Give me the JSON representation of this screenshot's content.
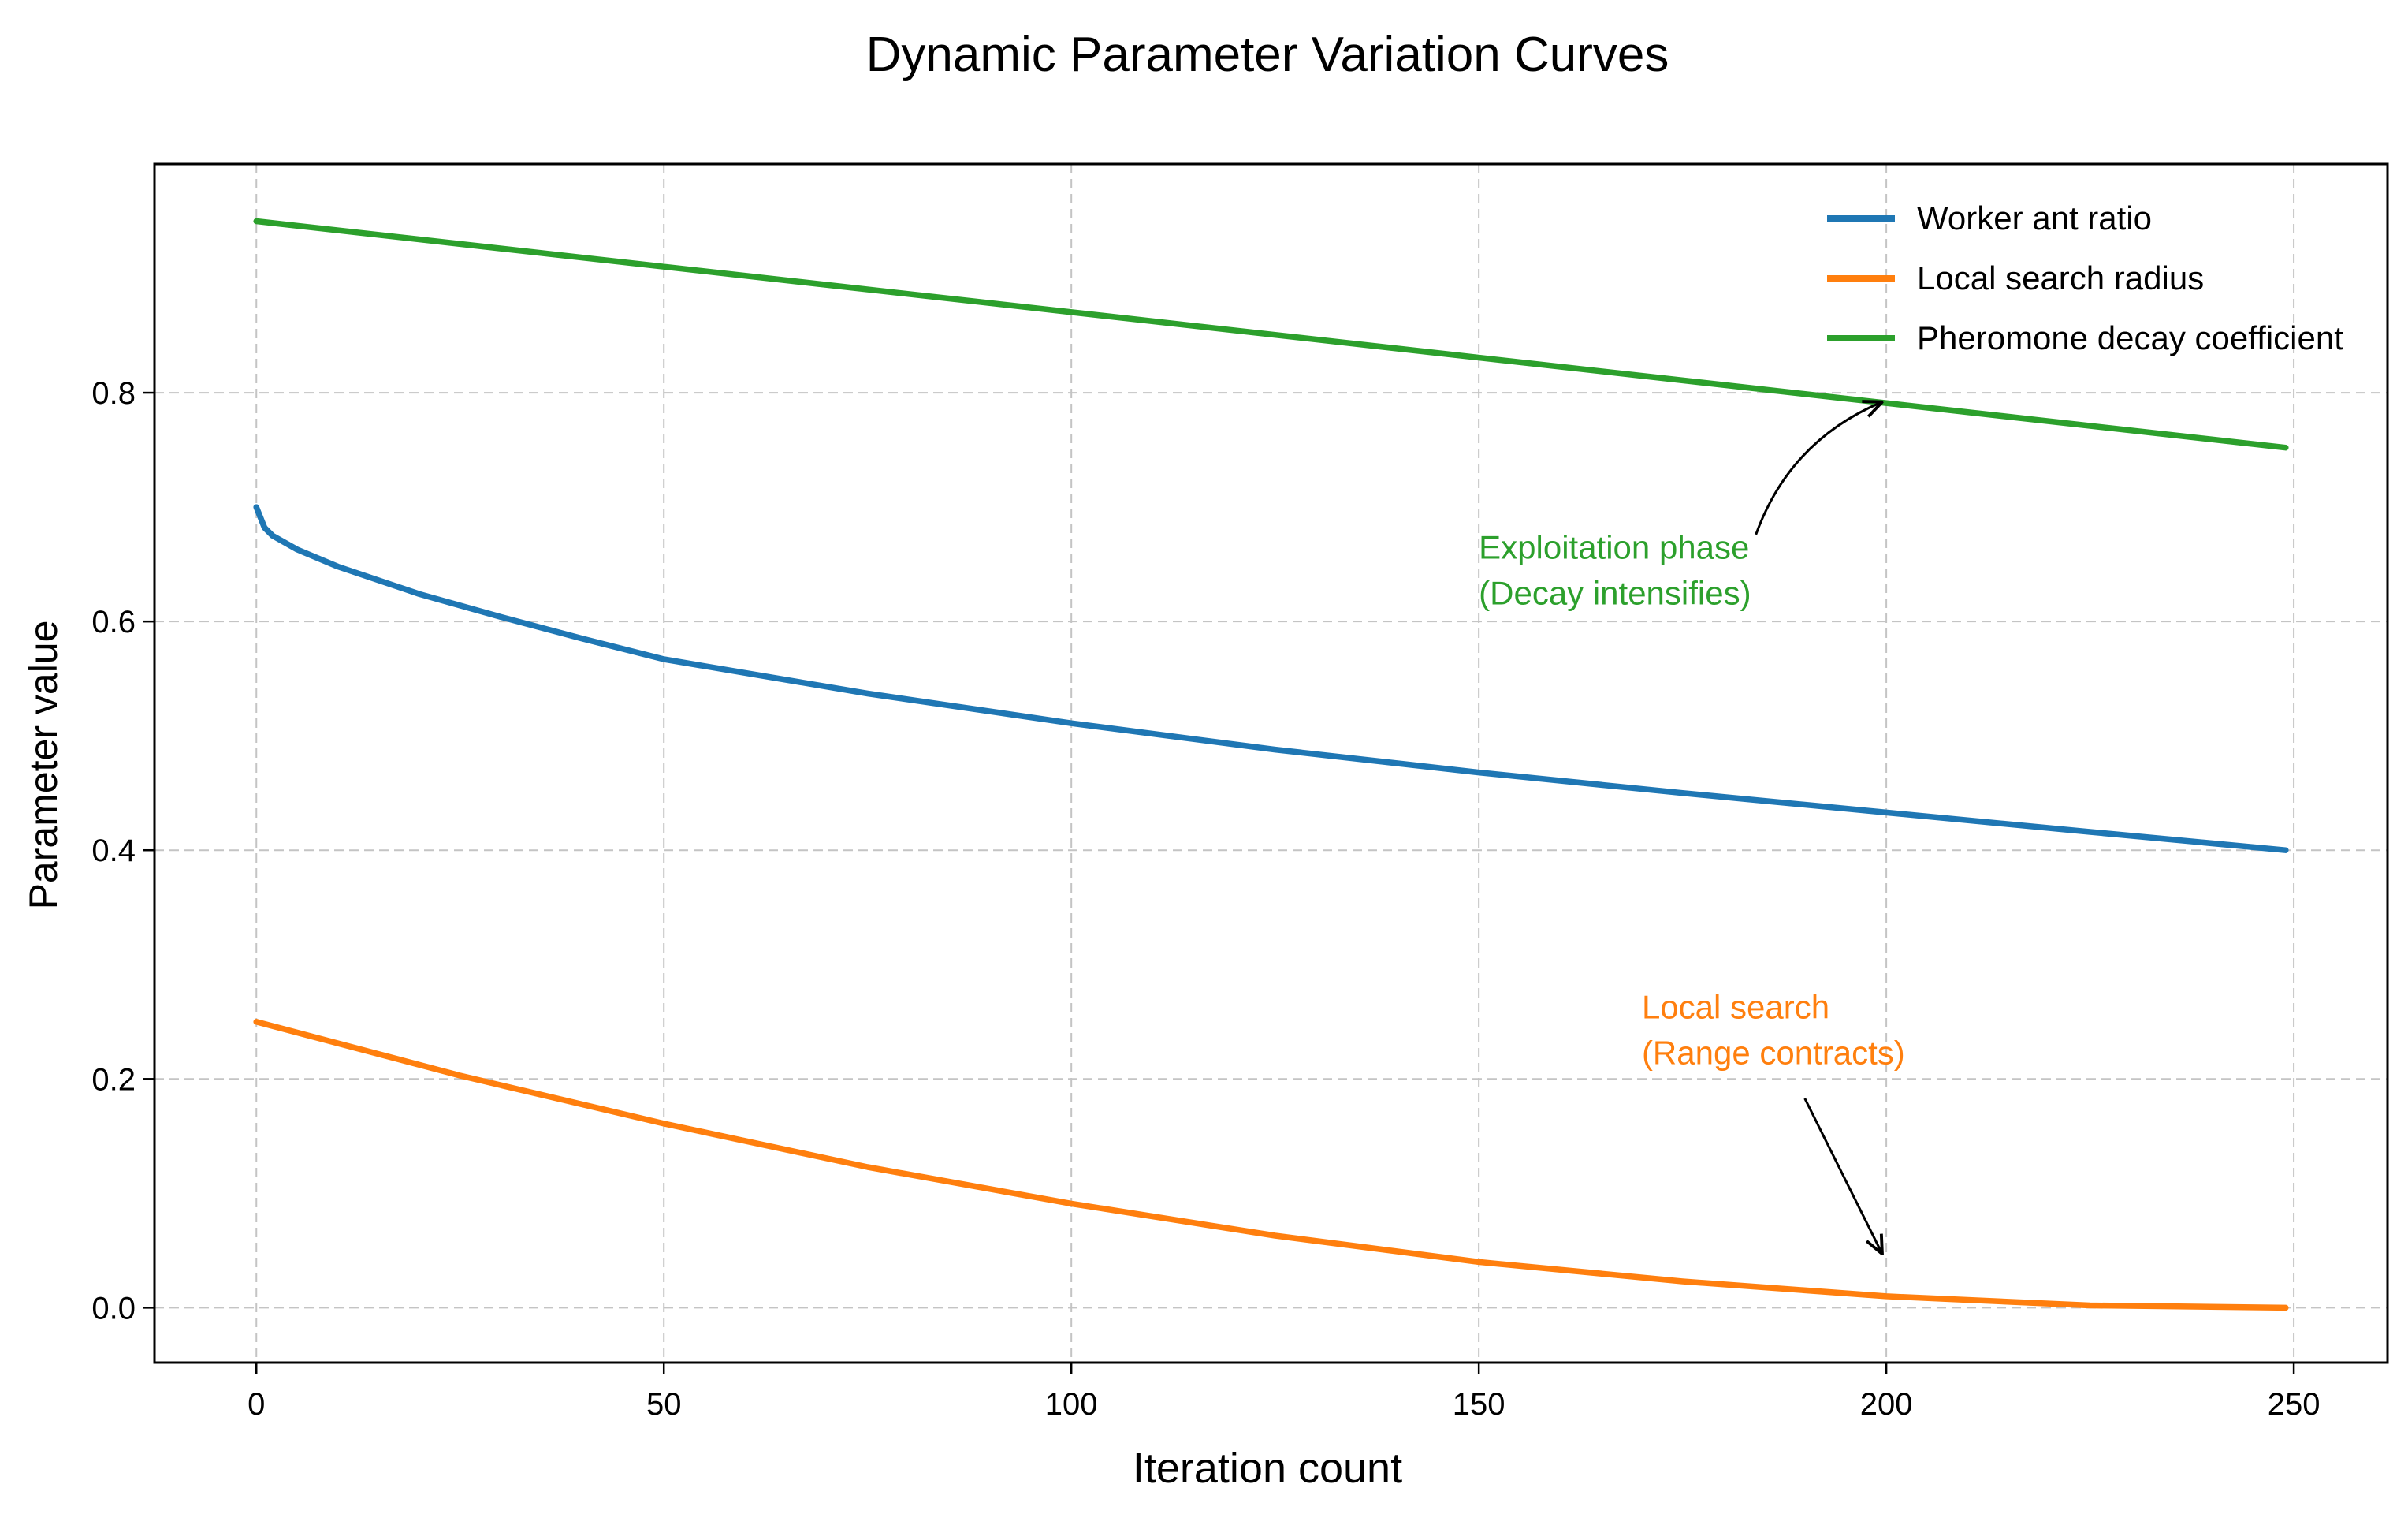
{
  "chart_data": {
    "type": "line",
    "title": "Dynamic Parameter Variation Curves",
    "xlabel": "Iteration count",
    "ylabel": "Parameter value",
    "xlim": [
      -12.5,
      261.5
    ],
    "ylim": [
      -0.048,
      1.0
    ],
    "xticks": [
      0,
      50,
      100,
      150,
      200,
      250
    ],
    "xtick_labels": [
      "0",
      "50",
      "100",
      "150",
      "200",
      "250"
    ],
    "yticks": [
      0.0,
      0.2,
      0.4,
      0.6,
      0.8
    ],
    "ytick_labels": [
      "0.0",
      "0.2",
      "0.4",
      "0.6",
      "0.8"
    ],
    "grid": true,
    "legend_position": "top-right",
    "series": [
      {
        "name": "Worker ant ratio",
        "color": "#1f77b4",
        "x": [
          0,
          1,
          2,
          5,
          10,
          20,
          30,
          40,
          50,
          75,
          100,
          125,
          150,
          175,
          200,
          225,
          249
        ],
        "y": [
          0.7,
          0.682,
          0.675,
          0.663,
          0.648,
          0.624,
          0.604,
          0.585,
          0.567,
          0.537,
          0.511,
          0.488,
          0.468,
          0.45,
          0.433,
          0.416,
          0.4
        ]
      },
      {
        "name": "Local search radius",
        "color": "#ff7f0e",
        "x": [
          0,
          25,
          50,
          75,
          100,
          125,
          150,
          175,
          200,
          225,
          249
        ],
        "y": [
          0.25,
          0.203,
          0.161,
          0.123,
          0.091,
          0.063,
          0.04,
          0.023,
          0.01,
          0.002,
          0.0
        ]
      },
      {
        "name": "Pheromone decay coefficient",
        "color": "#2ca02c",
        "x": [
          0,
          249
        ],
        "y": [
          0.95,
          0.752
        ]
      }
    ],
    "annotations": [
      {
        "name": "exploitation",
        "lines": [
          "Exploitation phase",
          "(Decay intensifies)"
        ],
        "color": "#2ca02c",
        "text_x": 150,
        "text_y": 0.655,
        "arrow_from": [
          184,
          0.676
        ],
        "arrow_to": [
          199.5,
          0.792
        ],
        "arrow_style": "arc"
      },
      {
        "name": "local-search",
        "lines": [
          "Local search",
          "(Range contracts)"
        ],
        "color": "#ff7f0e",
        "text_x": 170,
        "text_y": 0.253,
        "arrow_from": [
          190,
          0.183
        ],
        "arrow_to": [
          199.5,
          0.047
        ],
        "arrow_style": "straight"
      }
    ]
  }
}
